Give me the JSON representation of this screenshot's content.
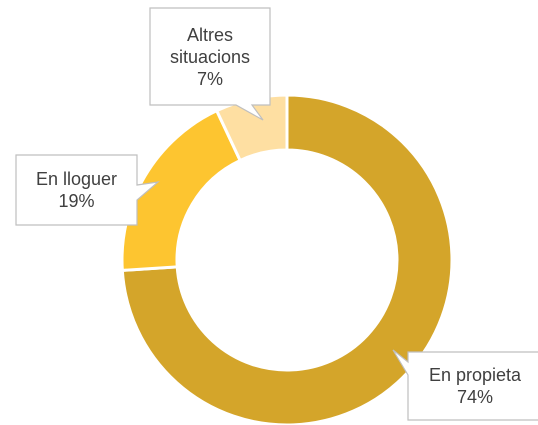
{
  "chart_data": {
    "type": "donut",
    "categories": [
      "En propieta",
      "En lloguer",
      "Altres situacions"
    ],
    "values": [
      74,
      19,
      7
    ],
    "value_labels": [
      "74%",
      "19%",
      "7%"
    ],
    "colors": [
      "#d4a52a",
      "#fdc530",
      "#fedfa2"
    ]
  }
}
